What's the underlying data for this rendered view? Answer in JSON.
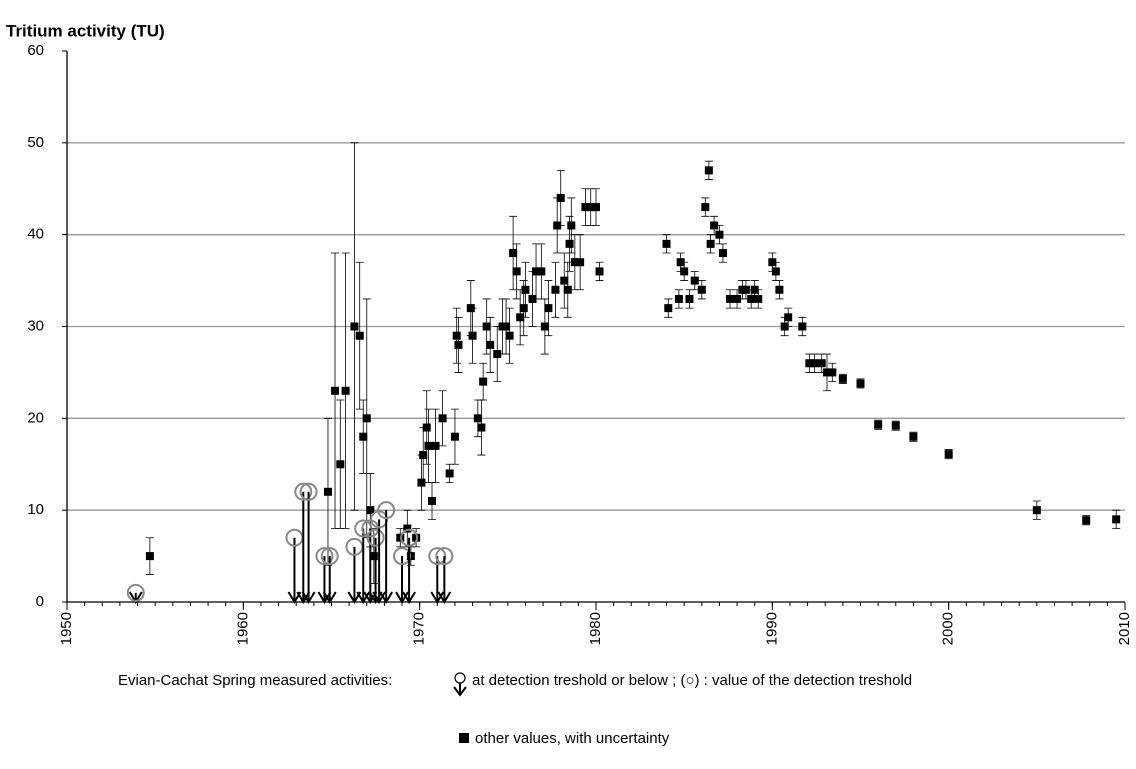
{
  "chart_data": {
    "type": "scatter",
    "title": "Tritium activity (TU)",
    "legend_title": "Evian-Cachat Spring measured activities:",
    "xlim": [
      1950,
      2010
    ],
    "xticks": [
      1950,
      1960,
      1970,
      1980,
      1990,
      2000,
      2010
    ],
    "x_minor_tick_interval": 1,
    "ylim": [
      0,
      60
    ],
    "yticks": [
      0,
      10,
      20,
      30,
      40,
      50,
      60
    ],
    "grid": true,
    "series": [
      {
        "name": "other values, with uncertainty",
        "color": "#000000",
        "marker": "square",
        "x": [
          1954.7,
          1964.8,
          1965.2,
          1965.5,
          1965.8,
          1966.3,
          1966.6,
          1966.8,
          1967.0,
          1967.2,
          1967.4,
          1968.9,
          1969.3,
          1969.5,
          1969.8,
          1970.1,
          1970.2,
          1970.4,
          1970.5,
          1970.7,
          1970.9,
          1971.3,
          1971.7,
          1972.0,
          1972.1,
          1972.2,
          1972.9,
          1973.0,
          1973.3,
          1973.5,
          1973.6,
          1973.8,
          1974.0,
          1974.4,
          1974.7,
          1974.9,
          1975.1,
          1975.3,
          1975.5,
          1975.7,
          1975.9,
          1976.0,
          1976.4,
          1976.6,
          1976.9,
          1977.1,
          1977.3,
          1977.7,
          1977.8,
          1978.0,
          1978.2,
          1978.4,
          1978.5,
          1978.6,
          1978.8,
          1979.1,
          1979.4,
          1979.7,
          1980.0,
          1980.2,
          1984.0,
          1984.1,
          1984.7,
          1984.8,
          1985.0,
          1985.3,
          1985.6,
          1986.0,
          1986.2,
          1986.4,
          1986.5,
          1986.7,
          1987.0,
          1987.2,
          1987.6,
          1988.0,
          1988.3,
          1988.5,
          1988.8,
          1989.0,
          1989.2,
          1990.0,
          1990.2,
          1990.4,
          1990.7,
          1990.9,
          1991.7,
          1992.1,
          1992.4,
          1992.8,
          1993.1,
          1993.4,
          1994.0,
          1995.0,
          1996.0,
          1997.0,
          1998.0,
          2000.0,
          2005.0,
          2007.8,
          2009.5
        ],
        "values": [
          5,
          12,
          23,
          15,
          23,
          30,
          29,
          18,
          20,
          10,
          5,
          7,
          8,
          5,
          7,
          13,
          16,
          19,
          17,
          11,
          17,
          20,
          14,
          18,
          29,
          28,
          32,
          29,
          20,
          19,
          24,
          30,
          28,
          27,
          30,
          30,
          29,
          38,
          36,
          31,
          32,
          34,
          33,
          36,
          36,
          30,
          32,
          34,
          41,
          44,
          35,
          34,
          39,
          41,
          37,
          37,
          43,
          43,
          43,
          36,
          39,
          32,
          33,
          37,
          36,
          33,
          35,
          34,
          43,
          47,
          39,
          41,
          40,
          38,
          33,
          33,
          34,
          34,
          33,
          34,
          33,
          37,
          36,
          34,
          30,
          31,
          30,
          26,
          26,
          26,
          25,
          25,
          24.3,
          23.8,
          19.3,
          19.2,
          18,
          16.1,
          10,
          8.9,
          9
        ],
        "errors": [
          2,
          8,
          15,
          7,
          15,
          20,
          8,
          4,
          13,
          4,
          3,
          1,
          2,
          1,
          1,
          3,
          3,
          4,
          4,
          2,
          4,
          3,
          1,
          3,
          3,
          3,
          3,
          3,
          2,
          3,
          2,
          3,
          3,
          3,
          3,
          3,
          3,
          4,
          3,
          3,
          3,
          3,
          3,
          3,
          3,
          3,
          3,
          3,
          3,
          3,
          3,
          3,
          3,
          3,
          3,
          3,
          2,
          2,
          2,
          1,
          1,
          1,
          1,
          1,
          1,
          1,
          1,
          1,
          1,
          1,
          1,
          1,
          1,
          1,
          1,
          1,
          1,
          1,
          1,
          1,
          1,
          1,
          1,
          1,
          1,
          1,
          1,
          1,
          1,
          1,
          2,
          1,
          0.5,
          0.5,
          0.5,
          0.5,
          0.5,
          0.5,
          1,
          0.5,
          1
        ]
      },
      {
        "name": "at detection treshold or below ; (○) : value of the detection treshold",
        "color": "#888888",
        "marker": "circle-arrow",
        "x": [
          1953.9,
          1962.9,
          1963.4,
          1963.7,
          1964.6,
          1964.9,
          1966.3,
          1966.8,
          1967.2,
          1967.5,
          1967.7,
          1968.1,
          1969.0,
          1969.4,
          1971.0,
          1971.4
        ],
        "values": [
          1,
          7,
          12,
          12,
          5,
          5,
          6,
          8,
          8,
          7,
          9,
          10,
          5,
          7,
          5,
          5
        ]
      }
    ]
  }
}
